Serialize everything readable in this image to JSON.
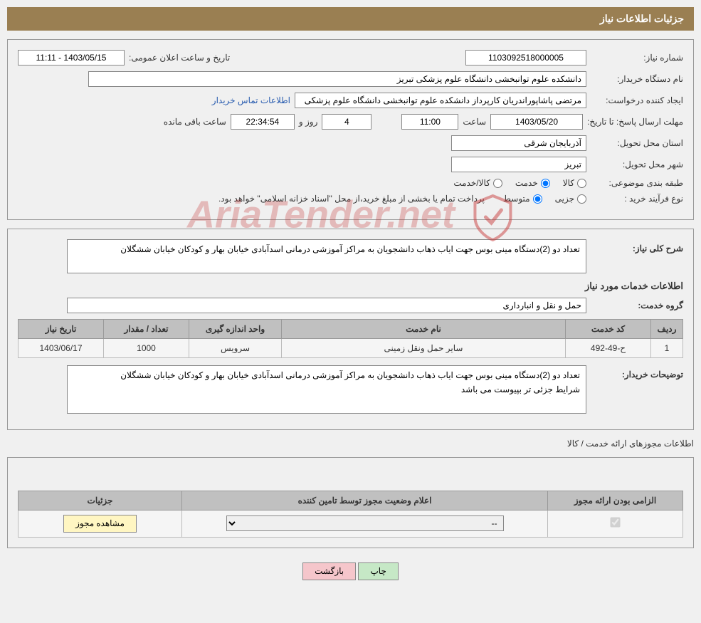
{
  "header": {
    "title": "جزئیات اطلاعات نیاز"
  },
  "request": {
    "number_label": "شماره نیاز:",
    "number": "1103092518000005",
    "announce_label": "تاریخ و ساعت اعلان عمومی:",
    "announce": "1403/05/15 - 11:11",
    "buyer_label": "نام دستگاه خریدار:",
    "buyer": "دانشکده علوم توانبخشی دانشگاه علوم پزشکی تبریز",
    "creator_label": "ایجاد کننده درخواست:",
    "creator": "مرتضی پاشاپوراندریان کارپرداز دانشکده علوم توانبخشی دانشگاه علوم پزشکی",
    "contact_link": "اطلاعات تماس خریدار",
    "deadline_label": "مهلت ارسال پاسخ: تا تاریخ:",
    "deadline_date": "1403/05/20",
    "saat_lbl": "ساعت",
    "deadline_time": "11:00",
    "days_lbl": "روز و",
    "days": "4",
    "remain_lbl": "ساعت باقی مانده",
    "remain": "22:34:54",
    "province_label": "استان محل تحویل:",
    "province": "آذربایجان شرقی",
    "city_label": "شهر محل تحویل:",
    "city": "تبریز",
    "cat_label": "طبقه بندی موضوعی:",
    "cat_goods": "کالا",
    "cat_service": "خدمت",
    "cat_both": "کالا/خدمت",
    "type_label": "نوع فرآیند خرید :",
    "type_minor": "جزیی",
    "type_medium": "متوسط",
    "type_note": "پرداخت تمام یا بخشی از مبلغ خرید،از محل \"اسناد خزانه اسلامی\" خواهد بود."
  },
  "desc": {
    "label": "شرح کلی نیاز:",
    "text": "تعداد دو (2)دستگاه مینی بوس جهت ایاب ذهاب دانشجویان به مراکز آموزشی درمانی اسدآبادی خیابان بهار و کودکان خیابان ششگلان"
  },
  "services": {
    "title": "اطلاعات خدمات مورد نیاز",
    "group_label": "گروه خدمت:",
    "group": "حمل و نقل و انبارداری",
    "cols": {
      "row": "ردیف",
      "code": "کد خدمت",
      "name": "نام خدمت",
      "unit": "واحد اندازه گیری",
      "qty": "تعداد / مقدار",
      "date": "تاریخ نیاز"
    },
    "rows": [
      {
        "row": "1",
        "code": "ح-49-492",
        "name": "سایر حمل ونقل زمینی",
        "unit": "سرویس",
        "qty": "1000",
        "date": "1403/06/17"
      }
    ],
    "buyer_note_label": "توضیحات خریدار:",
    "buyer_note": "تعداد دو (2)دستگاه مینی بوس جهت ایاب ذهاب دانشجویان به مراکز آموزشی درمانی اسدآبادی خیابان بهار و کودکان خیابان ششگلان\nشرایط جزئی تر بپیوست می باشد"
  },
  "license": {
    "title": "اطلاعات مجوزهای ارائه خدمت / کالا",
    "cols": {
      "mandatory": "الزامی بودن ارائه مجوز",
      "status": "اعلام وضعیت مجوز توسط تامین کننده",
      "details": "جزئیات"
    },
    "status_placeholder": "--",
    "view_btn": "مشاهده مجوز"
  },
  "buttons": {
    "print": "چاپ",
    "back": "بازگشت"
  },
  "watermark": "AriaTender.net"
}
